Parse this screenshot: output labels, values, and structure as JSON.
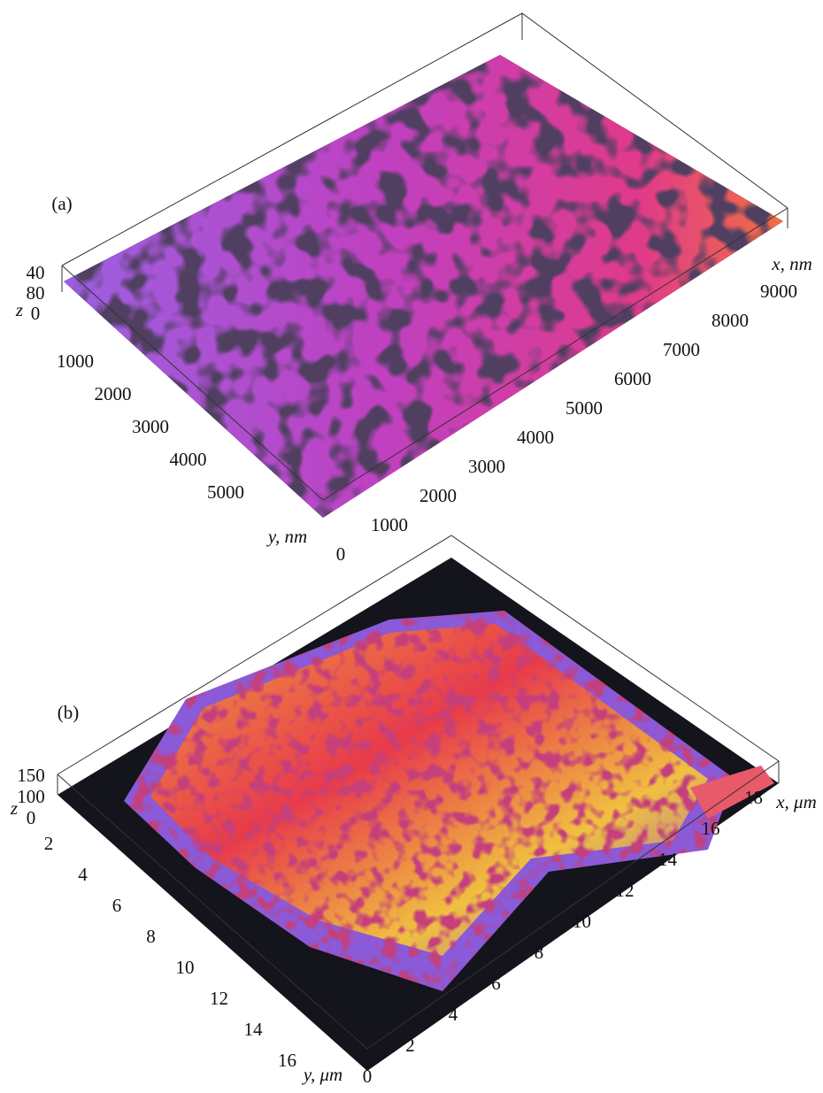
{
  "panels": [
    {
      "label": "(a)",
      "x_label": "x, nm",
      "y_label": "y, nm",
      "z_label": "z",
      "x_ticks": [
        0,
        1000,
        2000,
        3000,
        4000,
        5000,
        6000,
        7000,
        8000,
        9000
      ],
      "y_ticks": [
        1000,
        2000,
        3000,
        4000,
        5000
      ],
      "z_ticks": [
        40,
        80,
        0
      ]
    },
    {
      "label": "(b)",
      "x_label": "x, μm",
      "y_label": "y, μm",
      "z_label": "z",
      "x_ticks": [
        0,
        2,
        4,
        6,
        8,
        10,
        12,
        14,
        16,
        18
      ],
      "y_ticks": [
        2,
        4,
        6,
        8,
        10,
        12,
        14,
        16
      ],
      "z_ticks": [
        150,
        100,
        0
      ]
    }
  ]
}
